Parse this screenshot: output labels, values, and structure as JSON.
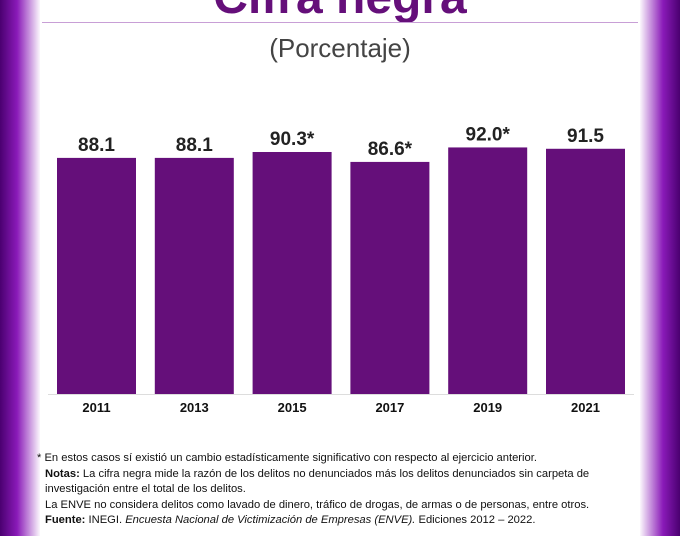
{
  "title": "Cifra negra",
  "subtitle": "(Porcentaje)",
  "colors": {
    "bar": "#650f7a",
    "title": "#650f7a",
    "frame": "#8a1ab8"
  },
  "chart_data": {
    "type": "bar",
    "categories": [
      "2011",
      "2013",
      "2015",
      "2017",
      "2019",
      "2021"
    ],
    "values": [
      88.1,
      88.1,
      90.3,
      86.6,
      92.0,
      91.5
    ],
    "data_labels": [
      "88.1",
      "88.1",
      "90.3*",
      "86.6*",
      "92.0*",
      "91.5"
    ],
    "title": "Cifra negra",
    "subtitle": "(Porcentaje)",
    "xlabel": "",
    "ylabel": "",
    "ylim": [
      0,
      100
    ],
    "grid": false,
    "legend": "none"
  },
  "notes": {
    "asterisk_note": "* En estos casos sí existió un cambio estadísticamente significativo con respecto al ejercicio anterior.",
    "notas_label": "Notas:",
    "notas_text": "La cifra negra mide la razón de los delitos no denunciados más los delitos denunciados sin carpeta de investigación entre el total de los delitos.",
    "enve_text": "La ENVE no considera delitos como lavado de dinero, tráfico de drogas, de armas o de personas, entre otros.",
    "fuente_label": "Fuente:",
    "fuente_org": "INEGI.",
    "fuente_title": "Encuesta Nacional de Victimización de Empresas (ENVE).",
    "fuente_editions": "Ediciones 2012 – 2022."
  }
}
